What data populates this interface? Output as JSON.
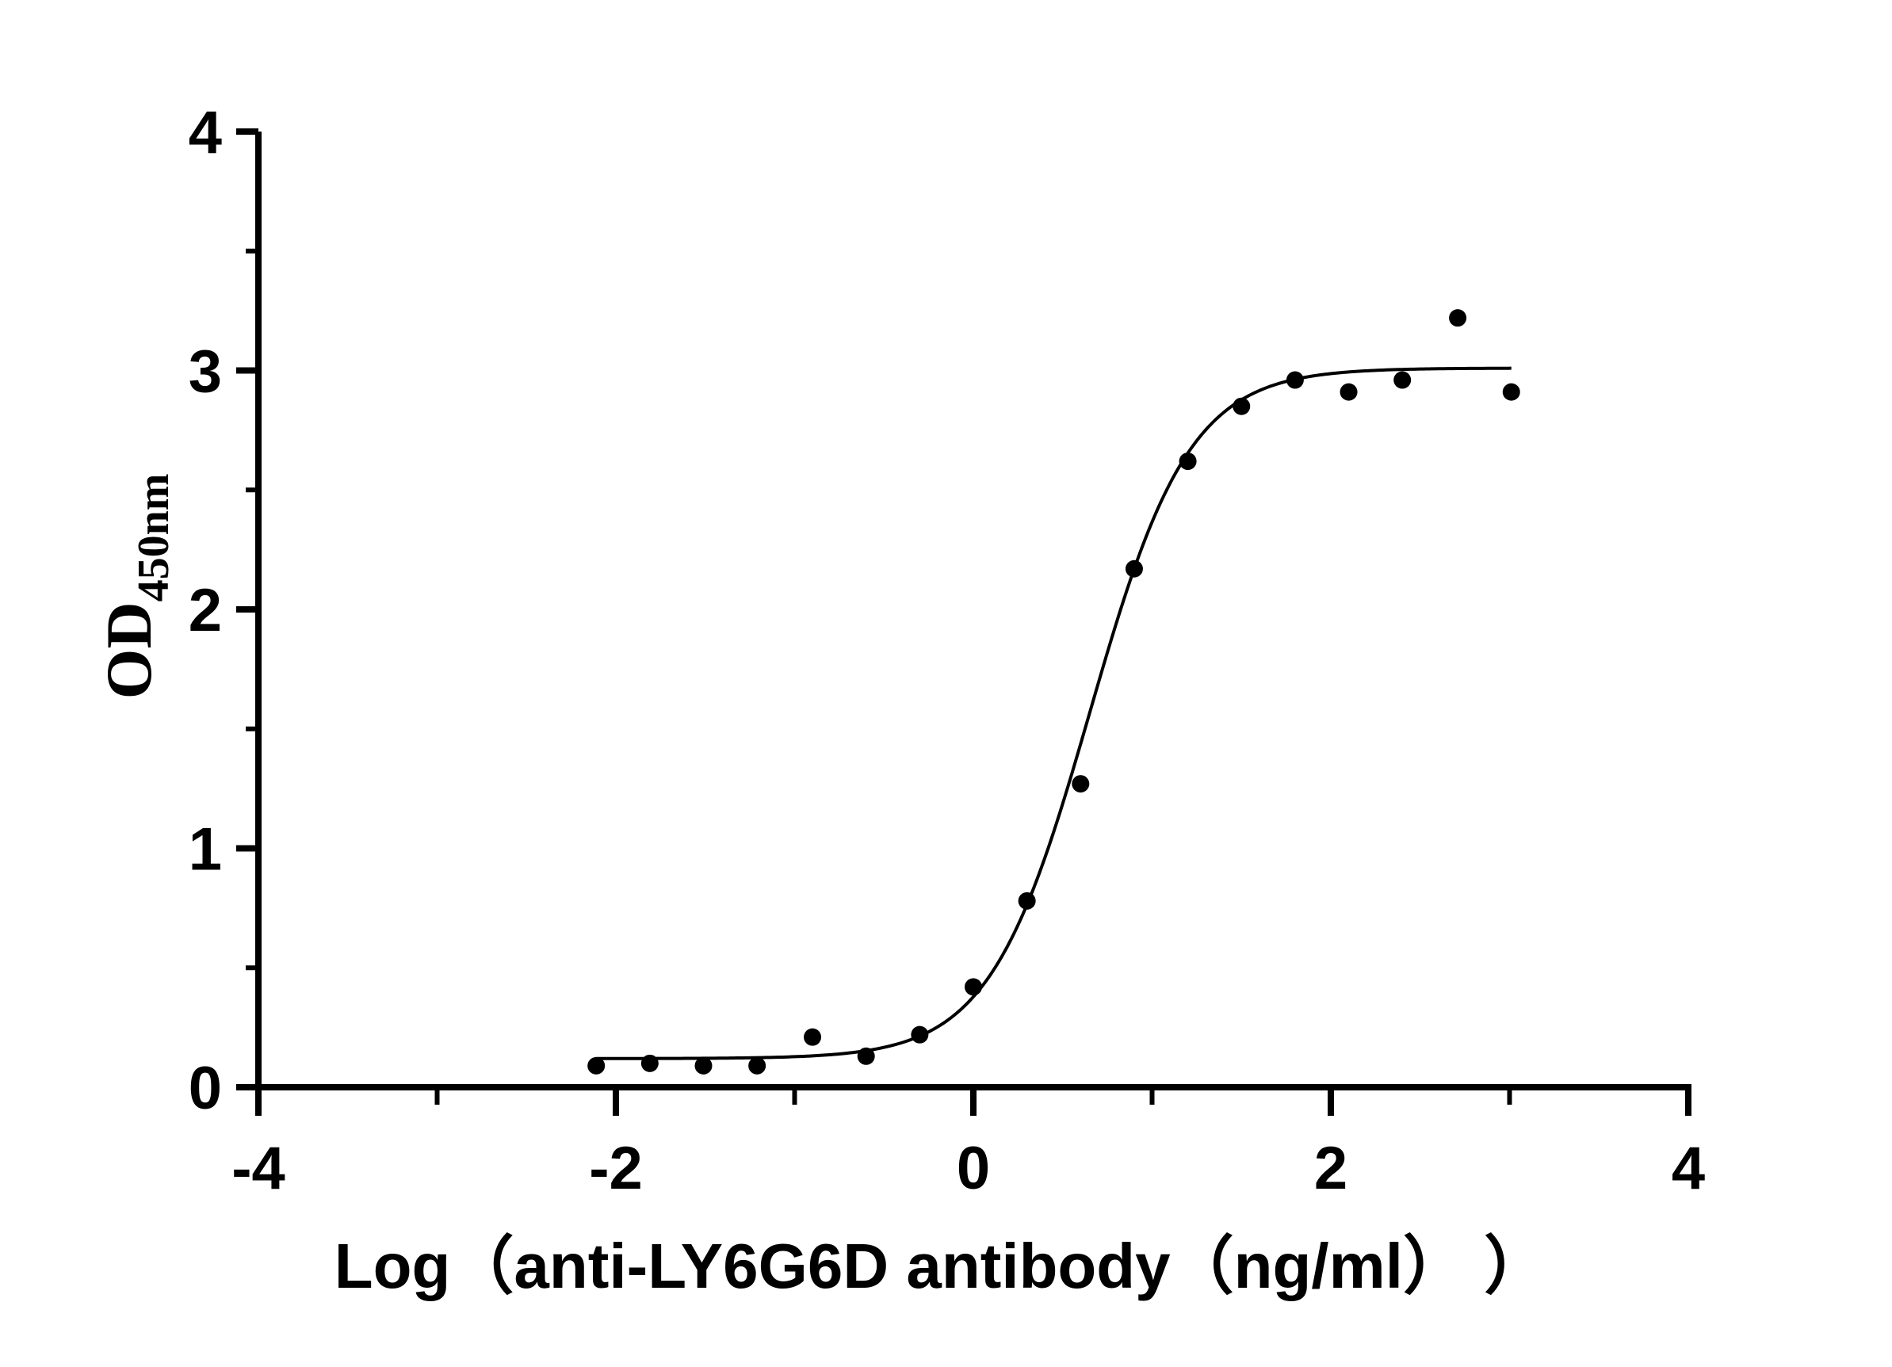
{
  "chart_data": {
    "type": "scatter",
    "title": "",
    "xlabel": "Log（anti-LY6G6D antibody（ng/ml） ）",
    "ylabel_main": "OD",
    "ylabel_sub": "450nm",
    "xlim": [
      -4,
      4
    ],
    "ylim": [
      0,
      4
    ],
    "xticks": [
      -4,
      -2,
      0,
      2,
      4
    ],
    "yticks": [
      0,
      1,
      2,
      3,
      4
    ],
    "xtick_labels": [
      "-4",
      "-2",
      "0",
      "2",
      "4"
    ],
    "ytick_labels": [
      "0",
      "1",
      "2",
      "3",
      "4"
    ],
    "grid": false,
    "legend": "none",
    "points": {
      "x": [
        -2.11,
        -1.81,
        -1.51,
        -1.21,
        -0.9,
        -0.6,
        -0.3,
        0.0,
        0.3,
        0.6,
        0.9,
        1.2,
        1.5,
        1.8,
        2.1,
        2.4,
        2.71,
        3.01
      ],
      "y": [
        0.09,
        0.1,
        0.09,
        0.09,
        0.21,
        0.13,
        0.22,
        0.42,
        0.78,
        1.27,
        2.17,
        2.62,
        2.85,
        2.96,
        2.91,
        2.96,
        3.22,
        2.91
      ]
    },
    "fit_curve": {
      "model": "4PL sigmoid",
      "bottom": 0.12,
      "top": 3.01,
      "log_ec50": 0.65,
      "hill_slope": 1.55,
      "x_range": [
        -2.11,
        3.01
      ]
    },
    "colors": {
      "points": "#000000",
      "curve": "#000000",
      "axis": "#000000"
    }
  }
}
